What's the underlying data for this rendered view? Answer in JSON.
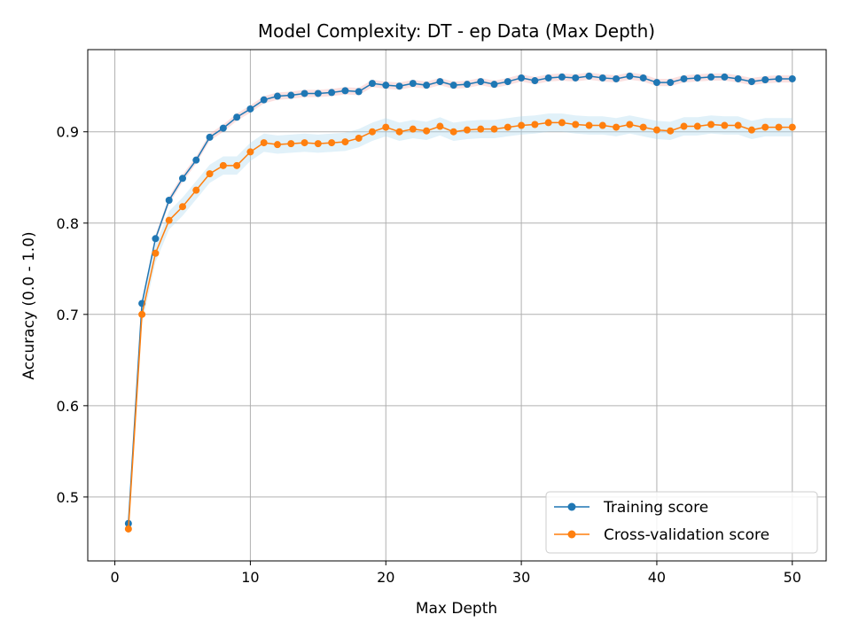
{
  "chart_data": {
    "type": "line",
    "title": "Model Complexity: DT - ep Data (Max Depth)",
    "xlabel": "Max Depth",
    "ylabel": "Accuracy (0.0 - 1.0)",
    "xlim": [
      -2,
      52.5
    ],
    "ylim": [
      0.43,
      0.99
    ],
    "xticks": [
      0,
      10,
      20,
      30,
      40,
      50
    ],
    "yticks": [
      0.5,
      0.6,
      0.7,
      0.8,
      0.9
    ],
    "grid": true,
    "legend_position": "lower right",
    "x": [
      1,
      2,
      3,
      4,
      5,
      6,
      7,
      8,
      9,
      10,
      11,
      12,
      13,
      14,
      15,
      16,
      17,
      18,
      19,
      20,
      21,
      22,
      23,
      24,
      25,
      26,
      27,
      28,
      29,
      30,
      31,
      32,
      33,
      34,
      35,
      36,
      37,
      38,
      39,
      40,
      41,
      42,
      43,
      44,
      45,
      46,
      47,
      48,
      49,
      50
    ],
    "series": [
      {
        "name": "Training score",
        "color": "#1f77b4",
        "band_color": "#f4a5a5",
        "values": [
          0.471,
          0.712,
          0.783,
          0.825,
          0.849,
          0.869,
          0.894,
          0.904,
          0.916,
          0.925,
          0.935,
          0.939,
          0.94,
          0.942,
          0.942,
          0.943,
          0.945,
          0.944,
          0.953,
          0.951,
          0.95,
          0.953,
          0.951,
          0.955,
          0.951,
          0.952,
          0.955,
          0.952,
          0.955,
          0.959,
          0.956,
          0.959,
          0.96,
          0.959,
          0.961,
          0.959,
          0.958,
          0.961,
          0.959,
          0.954,
          0.954,
          0.958,
          0.959,
          0.96,
          0.96,
          0.958,
          0.955,
          0.957,
          0.958,
          0.958
        ],
        "band_halfwidth": 0.004
      },
      {
        "name": "Cross-validation score",
        "color": "#ff7f0e",
        "band_color": "#a8d8ef",
        "values": [
          0.465,
          0.7,
          0.767,
          0.803,
          0.818,
          0.836,
          0.854,
          0.863,
          0.863,
          0.878,
          0.888,
          0.886,
          0.887,
          0.888,
          0.887,
          0.888,
          0.889,
          0.893,
          0.9,
          0.905,
          0.9,
          0.903,
          0.901,
          0.906,
          0.9,
          0.902,
          0.903,
          0.903,
          0.905,
          0.907,
          0.908,
          0.91,
          0.91,
          0.908,
          0.907,
          0.907,
          0.905,
          0.908,
          0.905,
          0.902,
          0.901,
          0.906,
          0.906,
          0.908,
          0.907,
          0.907,
          0.902,
          0.905,
          0.905,
          0.905
        ],
        "band_halfwidth": 0.01
      }
    ]
  }
}
